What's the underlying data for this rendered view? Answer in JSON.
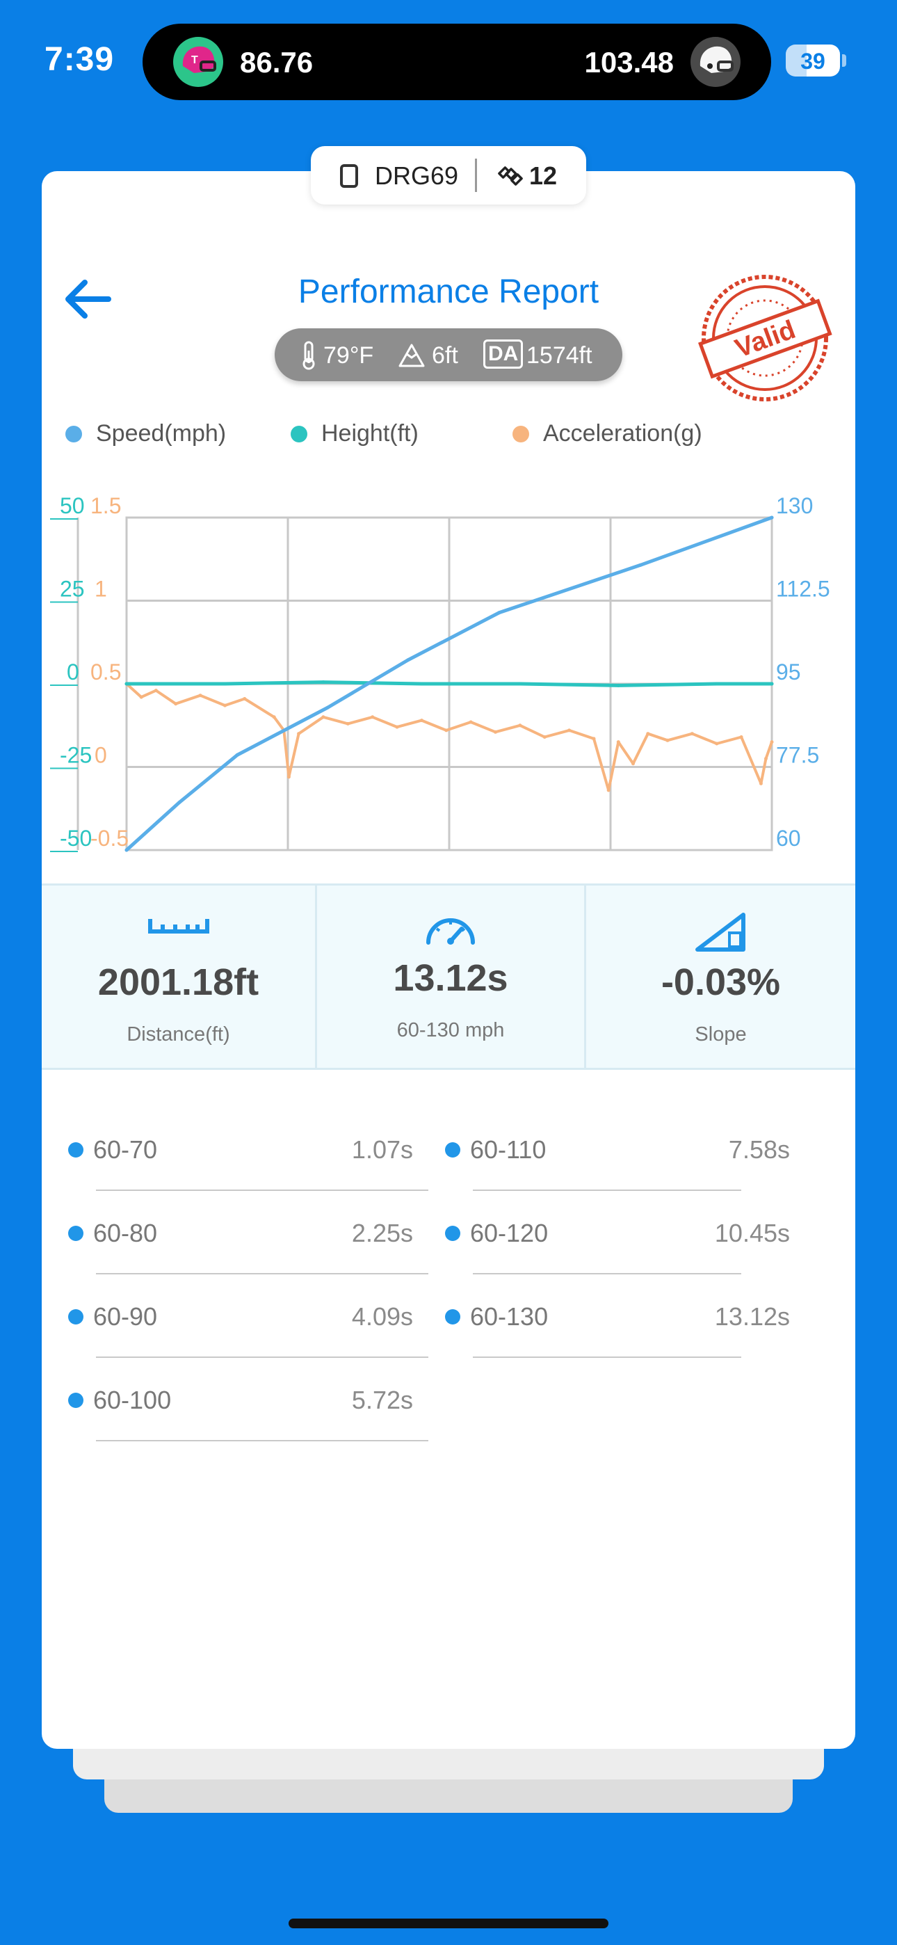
{
  "status": {
    "time": "7:39",
    "score_left": "86.76",
    "score_right": "103.48",
    "battery": "39"
  },
  "tag": {
    "device": "DRG69",
    "satellites": "12"
  },
  "header": {
    "title": "Performance Report",
    "temperature": "79°F",
    "altitude": "6ft",
    "da_badge": "DA",
    "density_altitude": "1574ft",
    "stamp_text": "Valid"
  },
  "chart_data": {
    "type": "line",
    "legend": [
      "Speed(mph)",
      "Height(ft)",
      "Acceleration(g)"
    ],
    "x_range": [
      0,
      13.12
    ],
    "axes": {
      "height": {
        "ticks": [
          "50",
          "25",
          "0",
          "-25",
          "-50"
        ],
        "range": [
          -50,
          50
        ]
      },
      "acceleration": {
        "ticks": [
          "1.5",
          "1",
          "0.5",
          "0",
          "-0.5"
        ],
        "range": [
          -0.5,
          1.5
        ]
      },
      "speed": {
        "ticks": [
          "130",
          "112.5",
          "95",
          "77.5",
          "60"
        ],
        "range": [
          60,
          130
        ]
      }
    },
    "series": [
      {
        "name": "Speed(mph)",
        "color": "#5AAEE8",
        "x": [
          0,
          1.07,
          2.25,
          4.09,
          5.72,
          7.58,
          10.45,
          13.12
        ],
        "y": [
          60,
          70,
          80,
          90,
          100,
          110,
          120,
          130
        ]
      },
      {
        "name": "Height(ft)",
        "color": "#2BC4C0",
        "x": [
          0,
          2,
          4,
          6,
          8,
          10,
          12,
          13.12
        ],
        "y": [
          0,
          0,
          0.5,
          0,
          0,
          -0.5,
          0,
          0
        ]
      },
      {
        "name": "Acceleration(g)",
        "color": "#F7B47E",
        "x": [
          0,
          0.3,
          0.6,
          1.0,
          1.5,
          2.0,
          2.4,
          3.0,
          3.2,
          3.3,
          3.5,
          4.0,
          4.5,
          5.0,
          5.5,
          6.0,
          6.5,
          7.0,
          7.5,
          8.0,
          8.5,
          9.0,
          9.5,
          9.8,
          10.0,
          10.3,
          10.6,
          11.0,
          11.5,
          12.0,
          12.5,
          12.9,
          13.0,
          13.12
        ],
        "y": [
          0.5,
          0.42,
          0.46,
          0.38,
          0.43,
          0.37,
          0.41,
          0.3,
          0.22,
          -0.06,
          0.2,
          0.3,
          0.26,
          0.3,
          0.24,
          0.28,
          0.22,
          0.27,
          0.21,
          0.25,
          0.18,
          0.22,
          0.17,
          -0.14,
          0.15,
          0.02,
          0.2,
          0.16,
          0.2,
          0.14,
          0.18,
          -0.1,
          0.05,
          0.15
        ]
      }
    ]
  },
  "stats": {
    "distance_value": "2001.18ft",
    "distance_label": "Distance(ft)",
    "time_value": "13.12s",
    "time_label": "60-130 mph",
    "slope_value": "-0.03%",
    "slope_label": "Slope"
  },
  "splits": [
    {
      "range": "60-70",
      "time": "1.07s"
    },
    {
      "range": "60-110",
      "time": "7.58s"
    },
    {
      "range": "60-80",
      "time": "2.25s"
    },
    {
      "range": "60-120",
      "time": "10.45s"
    },
    {
      "range": "60-90",
      "time": "4.09s"
    },
    {
      "range": "60-130",
      "time": "13.12s"
    },
    {
      "range": "60-100",
      "time": "5.72s"
    }
  ],
  "icons": {
    "status_left": "helmet-icon",
    "status_right": "helmet-icon",
    "tag_device": "phone-icon",
    "tag_sat": "satellite-icon",
    "back": "back-arrow-icon",
    "temperature": "thermometer-icon",
    "altitude": "mountain-icon",
    "distance": "ruler-icon",
    "time": "speedometer-icon",
    "slope": "slope-icon"
  },
  "colors": {
    "accent": "#0A7FE6",
    "speed": "#5AAEE8",
    "height": "#2BC4C0",
    "acceleration": "#F7B47E",
    "stamp": "#D9432B"
  }
}
